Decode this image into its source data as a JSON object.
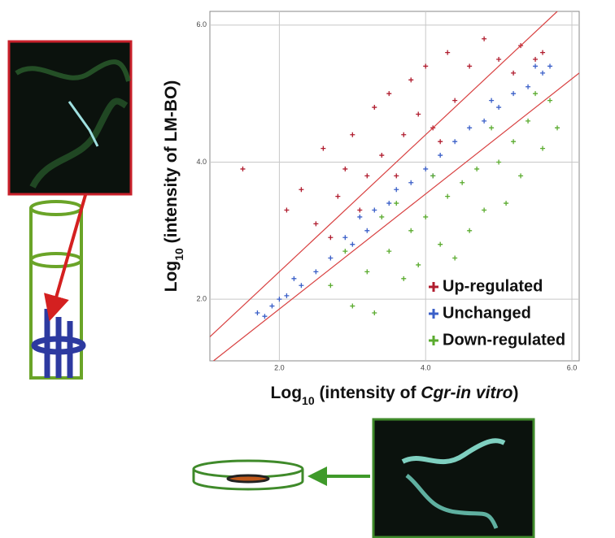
{
  "chart_data": {
    "type": "scatter",
    "x_label": [
      {
        "text": "Log"
      },
      {
        "text": "10",
        "subscript": true
      },
      {
        "text": " (intensity of "
      },
      {
        "text": "Cgr-in vitro",
        "italic": true
      },
      {
        "text": ")"
      }
    ],
    "y_label": [
      {
        "text": "Log"
      },
      {
        "text": "10",
        "subscript": true
      },
      {
        "text": " (intensity of LM-BO)"
      }
    ],
    "xlim": [
      1.05,
      6.1
    ],
    "ylim": [
      1.1,
      6.2
    ],
    "xticks": [
      {
        "value": 2,
        "label": "2.0"
      },
      {
        "value": 4,
        "label": "4.0"
      },
      {
        "value": 6,
        "label": "6.0"
      }
    ],
    "yticks": [
      {
        "value": 2,
        "label": "2.0"
      },
      {
        "value": 4,
        "label": "4.0"
      },
      {
        "value": 6,
        "label": "6.0"
      }
    ],
    "grid": true,
    "legend": "lower right",
    "reference_lines": [
      {
        "x": [
          1.1,
          6.1
        ],
        "y": [
          1.1,
          5.3
        ],
        "color": "#d84040"
      },
      {
        "x": [
          1.05,
          5.8
        ],
        "y": [
          1.45,
          6.2
        ],
        "color": "#d84040"
      }
    ],
    "series": [
      {
        "name": "Up-regulated",
        "color": "#b01c2e",
        "x": [
          1.5,
          2.1,
          2.3,
          2.5,
          2.6,
          2.8,
          2.9,
          3.0,
          3.2,
          3.3,
          3.4,
          3.5,
          3.7,
          3.8,
          3.9,
          4.0,
          4.1,
          4.3,
          4.4,
          4.6,
          4.8,
          5.0,
          5.2,
          5.3,
          5.5,
          2.7,
          3.1,
          3.6,
          4.2,
          5.6
        ],
        "values": [
          3.9,
          3.3,
          3.6,
          3.1,
          4.2,
          3.5,
          3.9,
          4.4,
          3.8,
          4.8,
          4.1,
          5.0,
          4.4,
          5.2,
          4.7,
          5.4,
          4.5,
          5.6,
          4.9,
          5.4,
          5.8,
          5.5,
          5.3,
          5.7,
          5.5,
          2.9,
          3.3,
          3.8,
          4.3,
          5.6
        ]
      },
      {
        "name": "Unchanged",
        "color": "#3a5fc8",
        "x": [
          1.7,
          1.8,
          1.9,
          2.0,
          2.1,
          2.3,
          2.5,
          2.7,
          2.9,
          3.0,
          3.2,
          3.3,
          3.5,
          3.6,
          3.8,
          4.0,
          4.2,
          4.4,
          4.6,
          4.8,
          5.0,
          5.2,
          5.4,
          5.6,
          5.7,
          2.2,
          3.1,
          4.1,
          4.9,
          5.5
        ],
        "values": [
          1.8,
          1.75,
          1.9,
          2.0,
          2.05,
          2.2,
          2.4,
          2.6,
          2.9,
          2.8,
          3.0,
          3.3,
          3.4,
          3.6,
          3.7,
          3.9,
          4.1,
          4.3,
          4.5,
          4.6,
          4.8,
          5.0,
          5.1,
          5.3,
          5.4,
          2.3,
          3.2,
          3.8,
          4.9,
          5.4
        ]
      },
      {
        "name": "Down-regulated",
        "color": "#5aab2e",
        "x": [
          2.7,
          3.0,
          3.2,
          3.3,
          3.5,
          3.7,
          3.8,
          3.9,
          4.0,
          4.2,
          4.3,
          4.4,
          4.5,
          4.6,
          4.7,
          4.8,
          5.0,
          5.1,
          5.2,
          5.3,
          5.4,
          5.6,
          5.7,
          5.8,
          3.4,
          3.6,
          4.1,
          4.9,
          5.5,
          2.9
        ],
        "values": [
          2.2,
          1.9,
          2.4,
          1.8,
          2.7,
          2.3,
          3.0,
          2.5,
          3.2,
          2.8,
          3.5,
          2.6,
          3.7,
          3.0,
          3.9,
          3.3,
          4.0,
          3.4,
          4.3,
          3.8,
          4.6,
          4.2,
          4.9,
          4.5,
          3.2,
          3.4,
          3.8,
          4.5,
          5.0,
          2.7
        ]
      }
    ]
  }
}
